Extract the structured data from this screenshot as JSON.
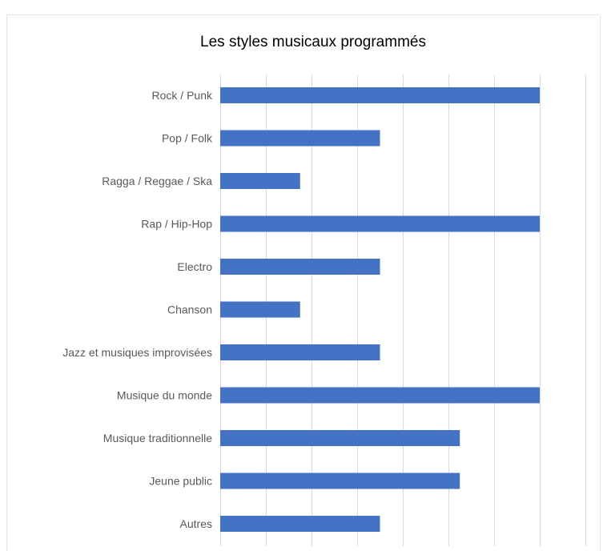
{
  "chart_data": {
    "type": "bar",
    "orientation": "horizontal",
    "title": "Les styles musicaux programmés",
    "xlabel": "",
    "ylabel": "",
    "categories": [
      "Rock / Punk",
      "Pop / Folk",
      "Ragga / Reggae / Ska",
      "Rap / Hip-Hop",
      "Electro",
      "Chanson",
      "Jazz et musiques improvisées",
      "Musique du monde",
      "Musique traditionnelle",
      "Jeune public",
      "Autres"
    ],
    "values": [
      7,
      3.5,
      1.75,
      7,
      3.5,
      1.75,
      3.5,
      7,
      5.25,
      5.25,
      3.5
    ],
    "xlim": [
      0,
      8
    ],
    "grid": "vertical",
    "tick_labels_visible": false,
    "legend": "none",
    "bar_color": "#4472c4",
    "gridline_color": "#d9d9d9",
    "text_color": "#595959",
    "title_color": "#000000"
  }
}
